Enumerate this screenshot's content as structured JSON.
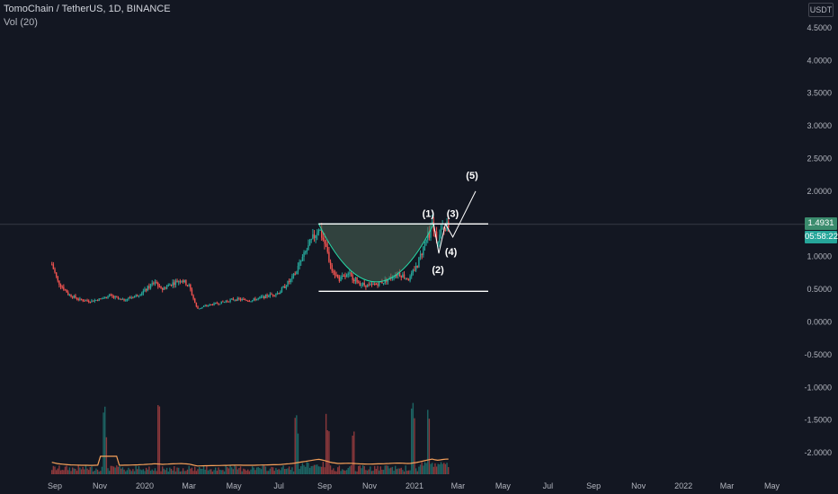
{
  "header": {
    "symbol_line": "TomoChain / TetherUS, 1D, BINANCE",
    "volume_indicator": "Vol (20)"
  },
  "price_scale": {
    "currency": "USDT",
    "last_price": "1.4931",
    "countdown": "05:58:22"
  },
  "colors": {
    "background": "#131722",
    "up": "#26a69a",
    "down": "#ef5350",
    "line": "#ffffff",
    "cup_fill": "#4a6655",
    "cup_stroke": "#26d9a6",
    "volume_ma": "#f7a15a",
    "last_price_badge": "#3b8c6e",
    "countdown_badge": "#26a69a"
  },
  "chart_data": {
    "type": "candlestick",
    "y_ticks": [
      "4.5000",
      "4.0000",
      "3.5000",
      "3.0000",
      "2.5000",
      "2.0000",
      "1.5000",
      "1.0000",
      "0.5000",
      "0.0000",
      "-0.5000",
      "-1.0000",
      "-1.5000",
      "-2.0000"
    ],
    "x_ticks": [
      "Sep",
      "Nov",
      "2020",
      "Mar",
      "May",
      "Jul",
      "Sep",
      "Nov",
      "2021",
      "Mar",
      "May",
      "Jul",
      "Sep",
      "Nov",
      "2022",
      "Mar",
      "May"
    ],
    "ylim": [
      -2.2,
      4.7
    ],
    "price_series": [
      [
        "2019-08-28",
        0.88
      ],
      [
        "2019-09-05",
        0.62
      ],
      [
        "2019-09-20",
        0.42
      ],
      [
        "2019-10-05",
        0.34
      ],
      [
        "2019-10-20",
        0.32
      ],
      [
        "2019-11-01",
        0.35
      ],
      [
        "2019-11-15",
        0.4
      ],
      [
        "2019-12-01",
        0.33
      ],
      [
        "2019-12-20",
        0.4
      ],
      [
        "2020-01-01",
        0.48
      ],
      [
        "2020-01-15",
        0.62
      ],
      [
        "2020-01-25",
        0.5
      ],
      [
        "2020-02-05",
        0.58
      ],
      [
        "2020-02-20",
        0.65
      ],
      [
        "2020-03-01",
        0.55
      ],
      [
        "2020-03-12",
        0.2
      ],
      [
        "2020-03-25",
        0.25
      ],
      [
        "2020-04-15",
        0.3
      ],
      [
        "2020-05-01",
        0.35
      ],
      [
        "2020-05-25",
        0.33
      ],
      [
        "2020-06-15",
        0.4
      ],
      [
        "2020-07-01",
        0.45
      ],
      [
        "2020-07-20",
        0.68
      ],
      [
        "2020-08-01",
        0.95
      ],
      [
        "2020-08-15",
        1.25
      ],
      [
        "2020-08-24",
        1.45
      ],
      [
        "2020-09-01",
        1.2
      ],
      [
        "2020-09-10",
        0.85
      ],
      [
        "2020-09-20",
        0.65
      ],
      [
        "2020-10-05",
        0.72
      ],
      [
        "2020-10-20",
        0.58
      ],
      [
        "2020-11-01",
        0.55
      ],
      [
        "2020-11-20",
        0.62
      ],
      [
        "2020-12-10",
        0.75
      ],
      [
        "2020-12-25",
        0.65
      ],
      [
        "2021-01-05",
        0.88
      ],
      [
        "2021-01-15",
        1.2
      ],
      [
        "2021-01-25",
        1.48
      ],
      [
        "2021-02-01",
        1.25
      ],
      [
        "2021-02-10",
        1.45
      ],
      [
        "2021-02-18",
        1.49
      ]
    ],
    "annotations": {
      "resistance_level": 1.5,
      "support_level": 0.47,
      "wave_labels": [
        "(1)",
        "(2)",
        "(3)",
        "(4)",
        "(5)"
      ],
      "wave_points": [
        {
          "label": "(1)",
          "date": "2021-01-27",
          "price": 1.5
        },
        {
          "label": "(2)",
          "date": "2021-02-03",
          "price": 1.05
        },
        {
          "label": "(3)",
          "date": "2021-02-12",
          "price": 1.5
        },
        {
          "label": "(4)",
          "date": "2021-02-22",
          "price": 1.3
        },
        {
          "label": "(5)",
          "date": "2021-03-25",
          "price": 2.0
        }
      ]
    },
    "volume": {
      "spike_dates": [
        "2019-11-08",
        "2020-01-20",
        "2020-07-25",
        "2020-09-05",
        "2020-10-10",
        "2020-12-30",
        "2021-01-20"
      ],
      "moving_average": true
    },
    "grid": false,
    "legend": "top-left"
  }
}
